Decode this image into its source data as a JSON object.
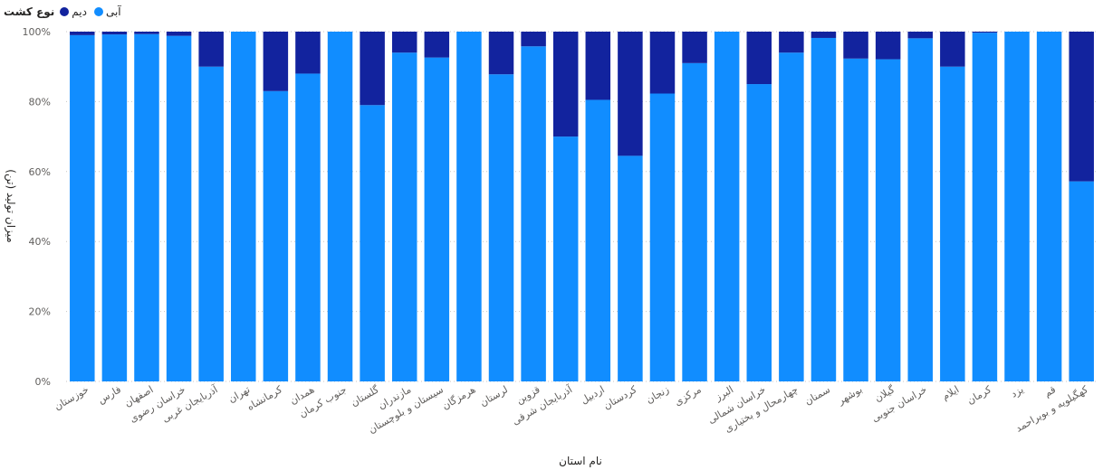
{
  "legend": {
    "title": "نوع کشت",
    "items": [
      {
        "label": "آبی",
        "color": "#118DFF"
      },
      {
        "label": "دیم",
        "color": "#12239E"
      }
    ]
  },
  "chart_data": {
    "type": "bar",
    "stacked": "percent",
    "xlabel": "نام استان",
    "ylabel": "میزان تولید (تن)",
    "yticks": [
      "0%",
      "20%",
      "40%",
      "60%",
      "80%",
      "100%"
    ],
    "ylim": [
      0,
      100
    ],
    "grid": true,
    "legend_position": "top-left",
    "categories": [
      "خوزستان",
      "فارس",
      "اصفهان",
      "خراسان رضوی",
      "آذربایجان غربی",
      "تهران",
      "کرمانشاه",
      "همدان",
      "جنوب کرمان",
      "گلستان",
      "مازندران",
      "سیستان و بلوچستان",
      "هرمزگان",
      "لرستان",
      "قزوین",
      "آذربایجان شرقی",
      "اردبیل",
      "کردستان",
      "زنجان",
      "مرکزی",
      "البرز",
      "خراسان شمالی",
      "چهارمحال و بختیاری",
      "سمنان",
      "بوشهر",
      "گیلان",
      "خراسان جنوبی",
      "ایلام",
      "کرمان",
      "یزد",
      "قم",
      "کهگیلویه و بویراحمد"
    ],
    "series": [
      {
        "name": "آبی",
        "color": "#118DFF",
        "values": [
          99,
          99.2,
          99.3,
          98.8,
          90,
          100,
          83,
          88,
          100,
          79,
          94,
          92.6,
          100,
          87.8,
          95.8,
          70,
          80.5,
          64.5,
          82.3,
          91,
          100,
          85,
          94,
          98.2,
          92.3,
          92.1,
          98.1,
          90,
          99.7,
          100,
          100,
          57.2
        ]
      },
      {
        "name": "دیم",
        "color": "#12239E",
        "values": [
          1,
          0.8,
          0.7,
          1.2,
          10,
          0,
          17,
          12,
          0,
          21,
          6,
          7.4,
          0,
          12.2,
          4.2,
          30,
          19.5,
          35.5,
          17.7,
          9,
          0,
          15,
          6,
          1.8,
          7.7,
          7.9,
          1.9,
          10,
          0.3,
          0,
          0,
          42.8
        ]
      }
    ]
  }
}
